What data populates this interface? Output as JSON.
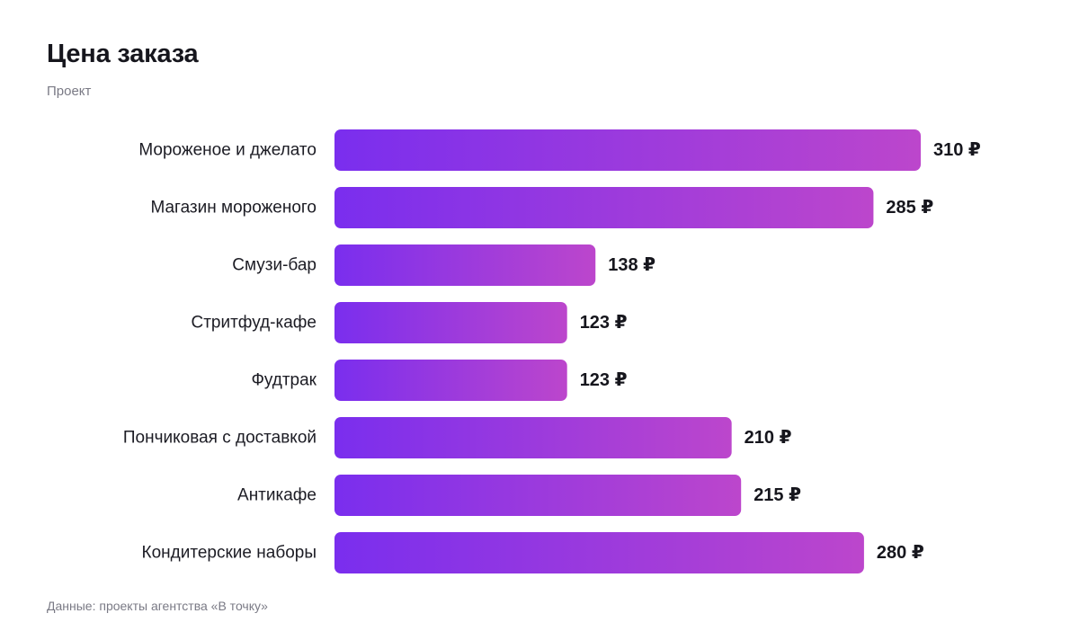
{
  "title": "Цена заказа",
  "subtitle": "Проект",
  "source": "Данные: проекты агентства «В точку»",
  "currency_symbol": "₽",
  "colors": {
    "bar_start": "#7a2eee",
    "bar_end": "#bc46cc",
    "label": "#1c1c24",
    "value": "#16161d"
  },
  "chart_data": {
    "type": "bar",
    "orientation": "horizontal",
    "title": "Цена заказа",
    "subtitle": "Проект",
    "categories": [
      "Мороженое и джелато",
      "Магазин мороженого",
      "Смузи-бар",
      "Стритфуд-кафе",
      "Фудтрак",
      "Пончиковая с доставкой",
      "Антикафе",
      "Кондитерские наборы"
    ],
    "values": [
      310,
      285,
      138,
      123,
      123,
      210,
      215,
      280
    ],
    "value_labels": [
      "310 ₽",
      "285 ₽",
      "138 ₽",
      "123 ₽",
      "123 ₽",
      "210 ₽",
      "215 ₽",
      "280 ₽"
    ],
    "unit": "₽",
    "xlim": [
      0,
      310
    ],
    "grid": false,
    "legend": "none"
  }
}
